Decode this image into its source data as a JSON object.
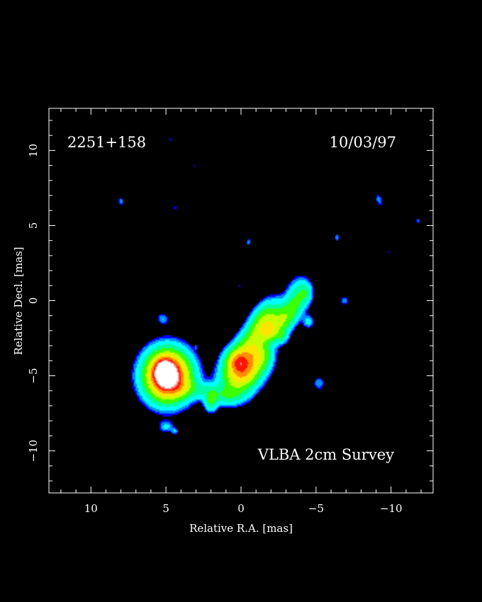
{
  "chart_data": {
    "type": "heatmap",
    "title": "",
    "source_label": "2251+158",
    "epoch_label": "10/03/97",
    "survey_label": "VLBA 2cm Survey",
    "xlabel": "Relative R.A. [mas]",
    "ylabel": "Relative Decl. [mas]",
    "xlim": [
      12.8,
      -12.8
    ],
    "ylim": [
      -12.8,
      12.8
    ],
    "x_ticks": [
      10,
      5,
      0,
      -5,
      -10
    ],
    "y_ticks": [
      10,
      5,
      0,
      -5,
      -10
    ],
    "x_tick_labels": [
      "10",
      "5",
      "0",
      "−5",
      "−10"
    ],
    "y_tick_labels": [
      "10",
      "5",
      "0",
      "−5",
      "−10"
    ],
    "grid": false,
    "colormap": [
      "#0000ff",
      "#00aaff",
      "#00ffff",
      "#00ff88",
      "#88ff00",
      "#ffff00",
      "#ff8800",
      "#ff0000",
      "#ffffff"
    ],
    "components": [
      {
        "x": 4.9,
        "y": -5.0,
        "sx": 0.95,
        "sy": 1.05,
        "angle": 0,
        "amp": 1.0
      },
      {
        "x": 5.1,
        "y": -4.7,
        "sx": 0.45,
        "sy": 0.55,
        "angle": 0,
        "amp": 0.45
      },
      {
        "x": 3.9,
        "y": -5.8,
        "sx": 0.8,
        "sy": 0.45,
        "angle": 0,
        "amp": 0.12
      },
      {
        "x": 2.2,
        "y": -6.0,
        "sx": 0.7,
        "sy": 0.35,
        "angle": 0,
        "amp": 0.1
      },
      {
        "x": 2.0,
        "y": -6.7,
        "sx": 0.28,
        "sy": 0.45,
        "angle": 0,
        "amp": 0.2
      },
      {
        "x": 1.0,
        "y": -6.4,
        "sx": 0.8,
        "sy": 0.35,
        "angle": 0,
        "amp": 0.11
      },
      {
        "x": -0.2,
        "y": -4.6,
        "sx": 0.75,
        "sy": 1.15,
        "angle": 35,
        "amp": 0.6
      },
      {
        "x": 0.3,
        "y": -4.0,
        "sx": 0.5,
        "sy": 0.5,
        "angle": 0,
        "amp": 0.25
      },
      {
        "x": -0.9,
        "y": -2.5,
        "sx": 0.55,
        "sy": 1.4,
        "angle": 40,
        "amp": 0.25
      },
      {
        "x": -1.5,
        "y": -1.2,
        "sx": 0.5,
        "sy": 0.9,
        "angle": 30,
        "amp": 0.22
      },
      {
        "x": -2.4,
        "y": -1.6,
        "sx": 0.5,
        "sy": 0.9,
        "angle": 35,
        "amp": 0.2
      },
      {
        "x": -3.2,
        "y": -0.9,
        "sx": 0.45,
        "sy": 0.9,
        "angle": 30,
        "amp": 0.18
      },
      {
        "x": -3.8,
        "y": 0.4,
        "sx": 0.5,
        "sy": 0.8,
        "angle": 10,
        "amp": 0.14
      },
      {
        "x": -4.3,
        "y": 0.5,
        "sx": 0.3,
        "sy": 0.45,
        "angle": 0,
        "amp": 0.12
      },
      {
        "x": -4.5,
        "y": -1.4,
        "sx": 0.25,
        "sy": 0.3,
        "angle": 0,
        "amp": 0.1
      },
      {
        "x": -1.4,
        "y": -3.7,
        "sx": 0.45,
        "sy": 0.55,
        "angle": 0,
        "amp": 0.14
      },
      {
        "x": -1.9,
        "y": -2.1,
        "sx": 0.3,
        "sy": 0.35,
        "angle": 0,
        "amp": 0.14
      },
      {
        "x": -2.7,
        "y": -2.4,
        "sx": 0.3,
        "sy": 0.3,
        "angle": 0,
        "amp": 0.12
      },
      {
        "x": 5.0,
        "y": -8.4,
        "sx": 0.35,
        "sy": 0.28,
        "angle": 0,
        "amp": 0.09
      },
      {
        "x": 4.4,
        "y": -8.7,
        "sx": 0.15,
        "sy": 0.15,
        "angle": 0,
        "amp": 0.08
      },
      {
        "x": 5.2,
        "y": -1.2,
        "sx": 0.25,
        "sy": 0.3,
        "angle": -40,
        "amp": 0.08
      },
      {
        "x": -5.2,
        "y": -5.5,
        "sx": 0.25,
        "sy": 0.32,
        "angle": 0,
        "amp": 0.08
      },
      {
        "x": -6.9,
        "y": 0.0,
        "sx": 0.22,
        "sy": 0.22,
        "angle": 0,
        "amp": 0.075
      },
      {
        "x": 8.0,
        "y": 6.6,
        "sx": 0.15,
        "sy": 0.2,
        "angle": 0,
        "amp": 0.07
      },
      {
        "x": 4.4,
        "y": 6.2,
        "sx": 0.1,
        "sy": 0.15,
        "angle": 0,
        "amp": 0.06
      },
      {
        "x": -0.5,
        "y": 3.9,
        "sx": 0.12,
        "sy": 0.2,
        "angle": 0,
        "amp": 0.07
      },
      {
        "x": -6.4,
        "y": 4.2,
        "sx": 0.12,
        "sy": 0.22,
        "angle": 0,
        "amp": 0.07
      },
      {
        "x": -9.2,
        "y": 6.7,
        "sx": 0.18,
        "sy": 0.35,
        "angle": -20,
        "amp": 0.07
      },
      {
        "x": -11.8,
        "y": 5.3,
        "sx": 0.12,
        "sy": 0.15,
        "angle": 0,
        "amp": 0.065
      },
      {
        "x": 4.7,
        "y": 10.7,
        "sx": 0.1,
        "sy": 0.13,
        "angle": 0,
        "amp": 0.05
      },
      {
        "x": 3.1,
        "y": 9.0,
        "sx": 0.08,
        "sy": 0.1,
        "angle": 0,
        "amp": 0.045
      },
      {
        "x": -2.2,
        "y": 2.5,
        "sx": 0.07,
        "sy": 0.08,
        "angle": 0,
        "amp": 0.045
      },
      {
        "x": -9.8,
        "y": 3.2,
        "sx": 0.08,
        "sy": 0.1,
        "angle": 0,
        "amp": 0.05
      },
      {
        "x": 0.1,
        "y": 1.0,
        "sx": 0.08,
        "sy": 0.13,
        "angle": 0,
        "amp": 0.05
      },
      {
        "x": 3.0,
        "y": -3.1,
        "sx": 0.07,
        "sy": 0.12,
        "angle": 0,
        "amp": 0.05
      }
    ]
  }
}
